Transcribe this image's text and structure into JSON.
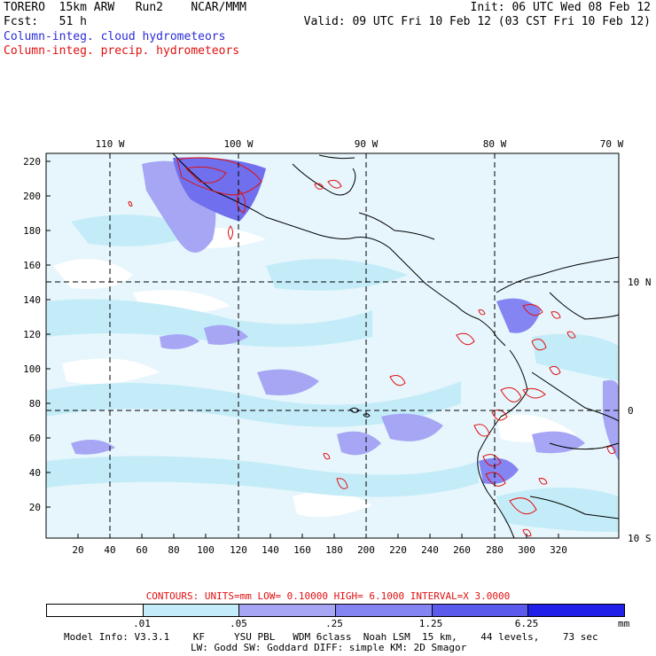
{
  "header": {
    "line1_left": "TORERO  15km ARW   Run2    NCAR/MMM",
    "line1_right": "Init: 06 UTC Wed 08 Feb 12",
    "line2_left": "Fcst:   51 h",
    "line2_right": "Valid: 09 UTC Fri 10 Feb 12 (03 CST Fri 10 Feb 12)",
    "line3": "Column-integ. cloud hydrometeors",
    "line4": "Column-integ. precip. hydrometeors"
  },
  "map": {
    "top_longitudes": [
      "110 W",
      "100 W",
      "90 W",
      "80 W",
      "70 W"
    ],
    "right_latitudes": [
      "10 N",
      "0",
      "10 S"
    ],
    "y_ticks": [
      "220",
      "200",
      "180",
      "160",
      "140",
      "120",
      "100",
      "80",
      "60",
      "40",
      "20"
    ],
    "x_ticks": [
      "20",
      "40",
      "60",
      "80",
      "100",
      "120",
      "140",
      "160",
      "180",
      "200",
      "220",
      "240",
      "260",
      "280",
      "300",
      "320"
    ],
    "colors": {
      "cloud_light": "#e6f6fc",
      "cloud_mid": "#c4ecf8",
      "cloud_lavender": "#a6a6f5",
      "cloud_blue": "#7070ee",
      "precip": "#e01010"
    }
  },
  "contour_info": "CONTOURS:  UNITS=mm  LOW= 0.10000      HIGH=  6.1000      INTERVAL=X  3.0000",
  "colorbar": {
    "segments": [
      "#ffffff",
      "#c4ecf8",
      "#a6a6f5",
      "#8484f2",
      "#5a5aed",
      "#2020e8"
    ],
    "labels": [
      ".01",
      ".05",
      ".25",
      "1.25",
      "6.25"
    ],
    "unit": "mm"
  },
  "model_info": {
    "line1": "Model Info: V3.3.1    KF     YSU PBL   WDM 6class  Noah LSM  15 km,    44 levels,    73 sec",
    "line2": "LW: Godd SW: Goddard DIFF: simple KM: 2D Smagor"
  }
}
